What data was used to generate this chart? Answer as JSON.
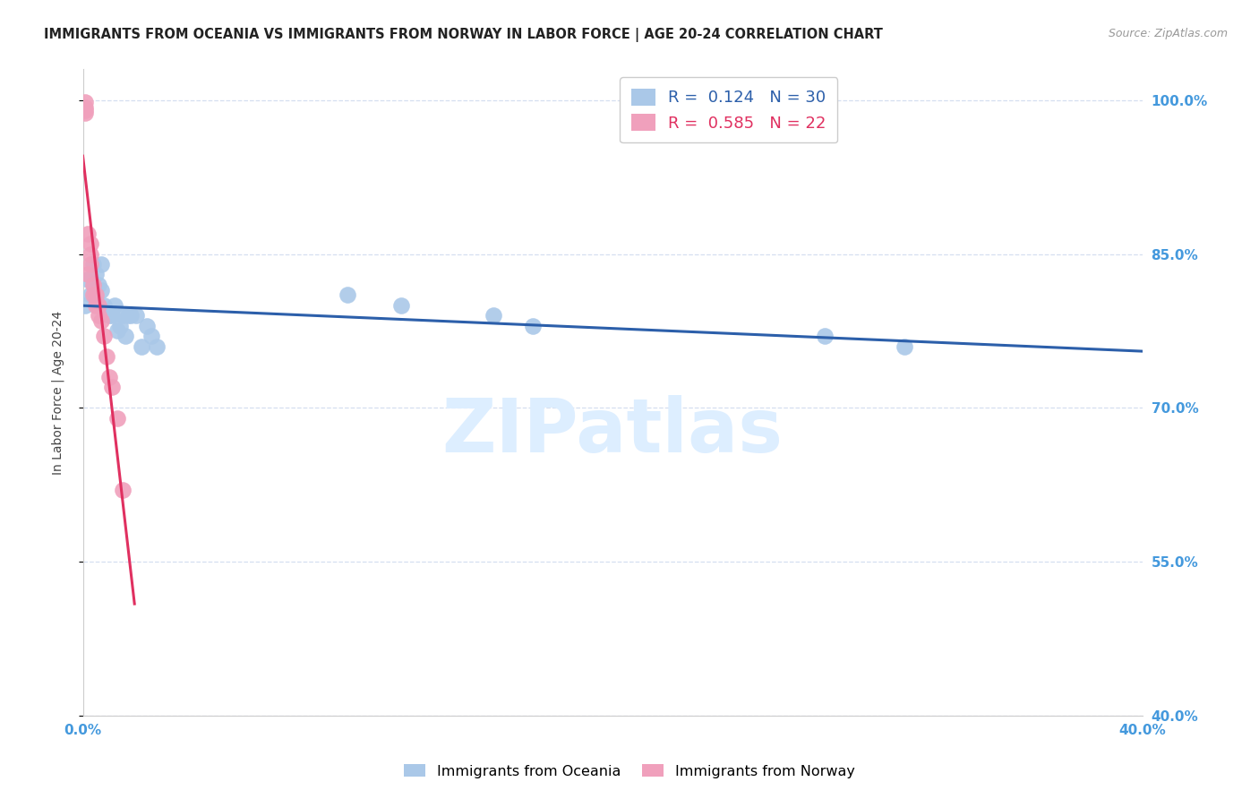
{
  "title": "IMMIGRANTS FROM OCEANIA VS IMMIGRANTS FROM NORWAY IN LABOR FORCE | AGE 20-24 CORRELATION CHART",
  "source": "Source: ZipAtlas.com",
  "ylabel": "In Labor Force | Age 20-24",
  "xlim": [
    0.0,
    0.4
  ],
  "ylim": [
    0.4,
    1.03
  ],
  "yticks": [
    1.0,
    0.85,
    0.7,
    0.55,
    0.4
  ],
  "ytick_labels": [
    "100.0%",
    "85.0%",
    "70.0%",
    "55.0%",
    "40.0%"
  ],
  "xticks": [
    0.0,
    0.05,
    0.1,
    0.15,
    0.2,
    0.25,
    0.3,
    0.35,
    0.4
  ],
  "xtick_labels": [
    "0.0%",
    "",
    "",
    "",
    "",
    "",
    "",
    "",
    "40.0%"
  ],
  "oceania_x": [
    0.001,
    0.002,
    0.003,
    0.004,
    0.005,
    0.005,
    0.006,
    0.007,
    0.007,
    0.008,
    0.01,
    0.011,
    0.012,
    0.013,
    0.014,
    0.015,
    0.016,
    0.017,
    0.018,
    0.02,
    0.022,
    0.024,
    0.026,
    0.028,
    0.1,
    0.12,
    0.155,
    0.17,
    0.28,
    0.31
  ],
  "oceania_y": [
    0.8,
    0.825,
    0.81,
    0.84,
    0.83,
    0.805,
    0.82,
    0.84,
    0.815,
    0.8,
    0.79,
    0.79,
    0.8,
    0.775,
    0.78,
    0.79,
    0.77,
    0.79,
    0.79,
    0.79,
    0.76,
    0.78,
    0.77,
    0.76,
    0.81,
    0.8,
    0.79,
    0.78,
    0.77,
    0.76
  ],
  "norway_x": [
    0.001,
    0.001,
    0.001,
    0.001,
    0.002,
    0.002,
    0.003,
    0.003,
    0.003,
    0.004,
    0.004,
    0.005,
    0.005,
    0.006,
    0.006,
    0.007,
    0.008,
    0.009,
    0.01,
    0.011,
    0.013,
    0.015
  ],
  "norway_y": [
    0.99,
    0.993,
    0.988,
    0.998,
    0.87,
    0.83,
    0.84,
    0.85,
    0.86,
    0.82,
    0.81,
    0.8,
    0.81,
    0.8,
    0.79,
    0.785,
    0.77,
    0.75,
    0.73,
    0.72,
    0.69,
    0.62
  ],
  "oceania_R": 0.124,
  "oceania_N": 30,
  "norway_R": 0.585,
  "norway_N": 22,
  "oceania_color": "#aac8e8",
  "norway_color": "#f0a0bc",
  "trendline_oceania_color": "#2c5faa",
  "trendline_norway_color": "#e03060",
  "axis_color": "#4499dd",
  "grid_color": "#d5dff0",
  "watermark_text": "ZIPatlas",
  "watermark_color": "#ddeeff",
  "background_color": "#ffffff",
  "title_fontsize": 10.5,
  "source_fontsize": 9,
  "label_fontsize": 10,
  "tick_fontsize": 11
}
